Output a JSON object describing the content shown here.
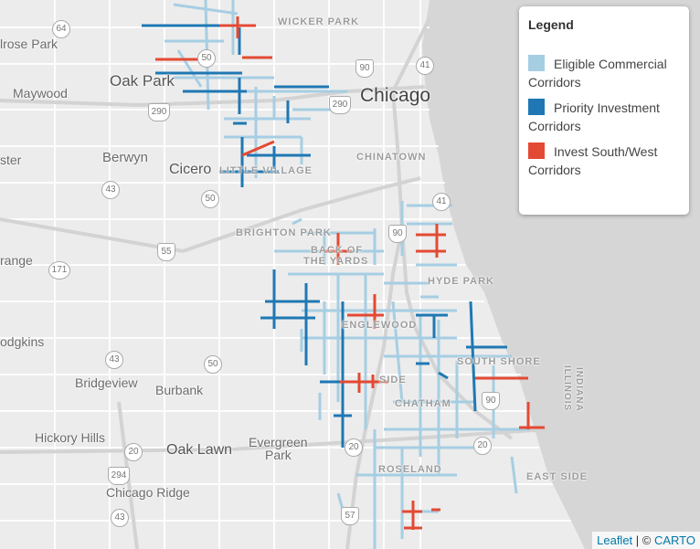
{
  "legend": {
    "title": "Legend",
    "items": [
      {
        "label": "Eligible Commercial Corridors",
        "color": "#a6cee3"
      },
      {
        "label": "Priority Investment Corridors",
        "color": "#1f78b4"
      },
      {
        "label": "Invest South/West Corridors",
        "color": "#e34a33"
      }
    ]
  },
  "attribution": {
    "leaflet": "Leaflet",
    "separator": " | © ",
    "carto": "CARTO"
  },
  "places": {
    "elmwood_park": "lrose Park",
    "oak_park": "Oak Park",
    "maywood": "Maywood",
    "chicago": "Chicago",
    "berwyn": "Berwyn",
    "cicero": "Cicero",
    "little_village": "LITTLE VILLAGE",
    "chinatown": "CHINATOWN",
    "wicker_park": "WICKER PARK",
    "brighton_park": "BRIGHTON PARK",
    "back_of_the_yards_1": "BACK OF",
    "back_of_the_yards_2": "THE YARDS",
    "hyde_park": "HYDE PARK",
    "englewood": "ENGLEWOOD",
    "south_side": "SIDE",
    "south_shore": "SOUTH SHORE",
    "chatham": "CHATHAM",
    "bridgeview": "Bridgeview",
    "burbank": "Burbank",
    "hickory_hills": "Hickory Hills",
    "oak_lawn": "Oak Lawn",
    "evergreen_park_1": "Evergreen",
    "evergreen_park_2": "Park",
    "chicago_ridge": "Chicago Ridge",
    "roseland": "ROSELAND",
    "east_side": "EAST SIDE",
    "indiana": "INDIANA",
    "illinois": "ILLINOIS",
    "ster": "ster",
    "range": "range",
    "odgkins": "odgkins"
  },
  "shields": {
    "s64": "64",
    "s50a": "50",
    "s90a": "90",
    "s41a": "41",
    "s290a": "290",
    "s290b": "290",
    "s43a": "43",
    "s50b": "50",
    "s55": "55",
    "s171": "171",
    "s41b": "41",
    "s90b": "90",
    "s43b": "43",
    "s50c": "50",
    "s90c": "90",
    "s20a": "20",
    "s20b": "20",
    "s20c": "20",
    "s294": "294",
    "s43c": "43",
    "s57": "57"
  }
}
